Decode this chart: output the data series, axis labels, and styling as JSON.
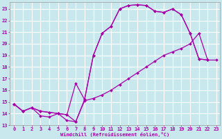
{
  "background_color": "#c8e8ee",
  "grid_color": "#ffffff",
  "line_color": "#aa00aa",
  "xlim": [
    -0.5,
    23.4
  ],
  "ylim": [
    13,
    23.6
  ],
  "xticks": [
    0,
    1,
    2,
    3,
    4,
    5,
    6,
    7,
    8,
    9,
    10,
    11,
    12,
    13,
    14,
    15,
    16,
    17,
    18,
    19,
    20,
    21,
    22,
    23
  ],
  "yticks": [
    13,
    14,
    15,
    16,
    17,
    18,
    19,
    20,
    21,
    22,
    23
  ],
  "xlabel": "Windchill (Refroidissement éolien,°C)",
  "s1_x": [
    0,
    1,
    2,
    3,
    4,
    5,
    6,
    7,
    8,
    9,
    10,
    11,
    12,
    13,
    14,
    15,
    16,
    17,
    18,
    19,
    20,
    21,
    22,
    23
  ],
  "s1_y": [
    14.8,
    14.2,
    14.5,
    13.8,
    13.7,
    14.0,
    13.4,
    13.3,
    15.2,
    19.0,
    20.9,
    21.5,
    23.0,
    23.3,
    23.35,
    23.3,
    22.8,
    22.7,
    23.0,
    22.5,
    20.9,
    18.7,
    18.6,
    null
  ],
  "s2_x": [
    0,
    1,
    2,
    3,
    4,
    5,
    6,
    7,
    8,
    9,
    10,
    11,
    12,
    13,
    14,
    15,
    16,
    17,
    18,
    19,
    20,
    21,
    22,
    23
  ],
  "s2_y": [
    14.8,
    14.2,
    14.5,
    14.2,
    14.1,
    14.0,
    13.9,
    16.6,
    15.2,
    19.0,
    20.9,
    21.5,
    23.0,
    23.3,
    23.35,
    23.3,
    22.8,
    22.7,
    23.0,
    22.5,
    20.9,
    18.7,
    18.6,
    null
  ],
  "s3_x": [
    0,
    1,
    2,
    3,
    4,
    5,
    6,
    7,
    8,
    9,
    10,
    11,
    12,
    13,
    14,
    15,
    16,
    17,
    18,
    19,
    20,
    21,
    22,
    23
  ],
  "s3_y": [
    14.8,
    14.2,
    14.5,
    14.2,
    14.1,
    14.0,
    13.9,
    13.3,
    15.1,
    15.3,
    15.6,
    16.0,
    16.5,
    17.0,
    17.5,
    18.0,
    18.5,
    19.0,
    19.3,
    19.6,
    20.0,
    20.9,
    18.6,
    18.6
  ]
}
